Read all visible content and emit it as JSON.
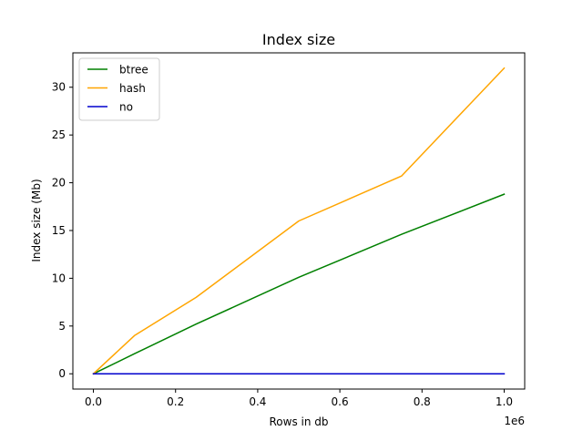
{
  "chart_data": {
    "type": "line",
    "title": "Index size",
    "xlabel": "Rows in db",
    "ylabel": "Index size (Mb)",
    "x_offset_label": "1e6",
    "xlim": [
      -0.05,
      1.05
    ],
    "ylim": [
      -1.6,
      33.6
    ],
    "x_ticks": [
      0.0,
      0.2,
      0.4,
      0.6,
      0.8,
      1.0
    ],
    "x_tick_labels": [
      "0.0",
      "0.2",
      "0.4",
      "0.6",
      "0.8",
      "1.0"
    ],
    "y_ticks": [
      0,
      5,
      10,
      15,
      20,
      25,
      30
    ],
    "y_tick_labels": [
      "0",
      "5",
      "10",
      "15",
      "20",
      "25",
      "30"
    ],
    "grid": false,
    "legend_position": "top-left",
    "series": [
      {
        "name": "btree",
        "color": "#008000",
        "x": [
          0.0,
          0.1,
          0.25,
          0.5,
          0.75,
          1.0
        ],
        "y": [
          0.0,
          2.1,
          5.2,
          10.1,
          14.6,
          18.8
        ]
      },
      {
        "name": "hash",
        "color": "#ffa500",
        "x": [
          0.0,
          0.1,
          0.25,
          0.5,
          0.75,
          1.0
        ],
        "y": [
          0.0,
          4.0,
          8.0,
          16.0,
          20.7,
          32.0
        ]
      },
      {
        "name": "no",
        "color": "#0000cd",
        "x": [
          0.0,
          0.1,
          0.25,
          0.5,
          0.75,
          1.0
        ],
        "y": [
          0.0,
          0.0,
          0.0,
          0.0,
          0.0,
          0.0
        ]
      }
    ]
  }
}
